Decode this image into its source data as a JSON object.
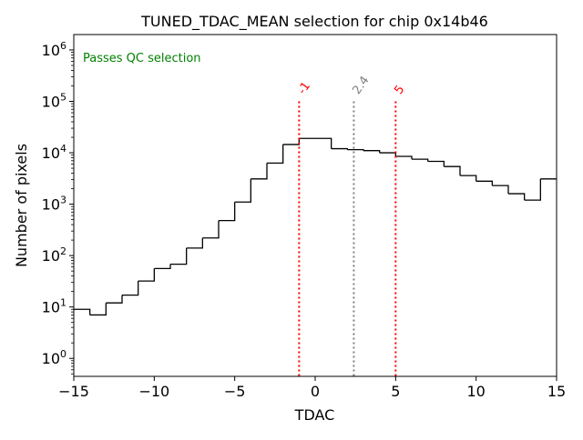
{
  "chart_data": {
    "type": "histogram",
    "title": "TUNED_TDAC_MEAN selection for chip 0x14b46",
    "xlabel": "TDAC",
    "ylabel": "Number of pixels",
    "xlim": [
      -15,
      15
    ],
    "ylim_log10": [
      -0.35,
      6.3
    ],
    "yscale": "log",
    "x_ticks": [
      -15,
      -10,
      -5,
      0,
      5,
      10,
      15
    ],
    "x_tick_labels": [
      "−15",
      "−10",
      "−5",
      "0",
      "5",
      "10",
      "15"
    ],
    "y_ticks_exp": [
      0,
      1,
      2,
      3,
      4,
      5,
      6
    ],
    "y_tick_base": "10",
    "bin_edges": [
      -15,
      -14,
      -13,
      -12,
      -11,
      -10,
      -9,
      -8,
      -7,
      -6,
      -5,
      -4,
      -3,
      -2,
      -1,
      0,
      1,
      2,
      3,
      4,
      5,
      6,
      7,
      8,
      9,
      10,
      11,
      12,
      13,
      14,
      15
    ],
    "counts": [
      9,
      7,
      12,
      17,
      32,
      56,
      68,
      140,
      220,
      480,
      1100,
      3100,
      6300,
      14500,
      19000,
      19000,
      12000,
      11500,
      11000,
      10000,
      8500,
      7500,
      6800,
      5400,
      3600,
      2800,
      2300,
      1600,
      1200,
      3100
    ],
    "annotation": "Passes QC selection",
    "annotation_color": "#008000",
    "vlines": [
      {
        "x": -1,
        "label": "-1",
        "color": "#ff0000",
        "top": 100000
      },
      {
        "x": 2.4,
        "label": "2.4",
        "color": "#808080",
        "top": 100000
      },
      {
        "x": 5,
        "label": "5",
        "color": "#ff0000",
        "top": 100000
      }
    ],
    "line_color": "#000000"
  }
}
